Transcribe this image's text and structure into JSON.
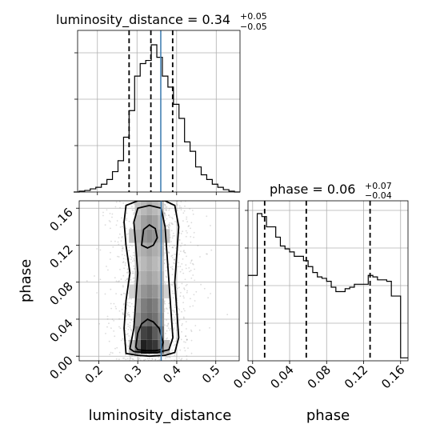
{
  "chart_data": [
    {
      "type": "histogram",
      "panel": "luminosity_distance marginal",
      "title": {
        "param": "luminosity_distance",
        "median": "0.34",
        "plus": "+0.05",
        "minus": "−0.05"
      },
      "x_range": [
        0.15,
        0.56
      ],
      "x_ticks": [
        0.2,
        0.3,
        0.4,
        0.5
      ],
      "bin_edges": [
        0.14,
        0.154,
        0.168,
        0.182,
        0.196,
        0.21,
        0.224,
        0.238,
        0.252,
        0.266,
        0.28,
        0.294,
        0.308,
        0.322,
        0.336,
        0.35,
        0.364,
        0.378,
        0.392,
        0.406,
        0.42,
        0.434,
        0.448,
        0.462,
        0.476,
        0.49,
        0.504,
        0.518,
        0.532,
        0.546,
        0.56
      ],
      "relative_density": [
        0.0,
        0.005,
        0.01,
        0.02,
        0.03,
        0.05,
        0.08,
        0.13,
        0.2,
        0.35,
        0.52,
        0.74,
        0.82,
        0.84,
        0.94,
        0.86,
        0.74,
        0.67,
        0.56,
        0.47,
        0.32,
        0.26,
        0.16,
        0.11,
        0.08,
        0.05,
        0.03,
        0.015,
        0.005,
        0.0
      ],
      "quantiles": [
        0.28,
        0.335,
        0.39
      ],
      "truth": 0.36,
      "y_tick_count": 3
    },
    {
      "type": "histogram",
      "panel": "phase marginal",
      "title": {
        "param": "phase",
        "median": "0.06",
        "plus": "+0.07",
        "minus": "−0.04"
      },
      "x_range": [
        -0.005,
        0.168
      ],
      "x_ticks": [
        0.0,
        0.04,
        0.08,
        0.12,
        0.16
      ],
      "x_tick_labels": [
        "0.00",
        "0.04",
        "0.08",
        "0.12",
        "0.16"
      ],
      "bin_edges": [
        -0.005,
        0.0,
        0.005,
        0.01,
        0.015,
        0.02,
        0.025,
        0.03,
        0.035,
        0.04,
        0.045,
        0.05,
        0.055,
        0.06,
        0.065,
        0.07,
        0.075,
        0.08,
        0.085,
        0.09,
        0.095,
        0.1,
        0.105,
        0.11,
        0.115,
        0.12,
        0.125,
        0.13,
        0.135,
        0.14,
        0.145,
        0.15,
        0.155,
        0.16,
        0.165,
        0.168
      ],
      "relative_density": [
        0.58,
        0.58,
        1.0,
        0.98,
        0.91,
        0.91,
        0.84,
        0.78,
        0.76,
        0.74,
        0.71,
        0.71,
        0.68,
        0.64,
        0.6,
        0.57,
        0.56,
        0.54,
        0.5,
        0.47,
        0.47,
        0.49,
        0.5,
        0.52,
        0.52,
        0.52,
        0.58,
        0.57,
        0.55,
        0.55,
        0.54,
        0.44,
        0.44,
        0.02,
        0.02
      ],
      "quantiles": [
        0.013,
        0.058,
        0.127
      ],
      "y_tick_count": 4
    },
    {
      "type": "heatmap",
      "panel": "2D posterior (joint)",
      "x_label": "luminosity_distance",
      "y_label": "phase",
      "x_range": [
        0.15,
        0.56
      ],
      "y_range": [
        -0.005,
        0.168
      ],
      "x_ticks": [
        0.2,
        0.3,
        0.4,
        0.5
      ],
      "y_ticks": [
        0.0,
        0.04,
        0.08,
        0.12,
        0.16
      ],
      "y_tick_labels": [
        "0.00",
        "0.04",
        "0.08",
        "0.12",
        "0.16"
      ],
      "truth": {
        "luminosity_distance": 0.36
      },
      "contour_levels": [
        "outer",
        "mid",
        "inner"
      ],
      "density_cells": [
        [
          0.315,
          0.01,
          0.95
        ],
        [
          0.33,
          0.01,
          0.9
        ],
        [
          0.345,
          0.01,
          0.85
        ],
        [
          0.3,
          0.01,
          0.6
        ],
        [
          0.36,
          0.01,
          0.65
        ],
        [
          0.315,
          0.025,
          0.8
        ],
        [
          0.33,
          0.025,
          0.85
        ],
        [
          0.345,
          0.025,
          0.7
        ],
        [
          0.3,
          0.025,
          0.55
        ],
        [
          0.36,
          0.025,
          0.6
        ],
        [
          0.315,
          0.04,
          0.6
        ],
        [
          0.33,
          0.04,
          0.65
        ],
        [
          0.345,
          0.04,
          0.6
        ],
        [
          0.3,
          0.04,
          0.45
        ],
        [
          0.36,
          0.04,
          0.45
        ],
        [
          0.315,
          0.055,
          0.55
        ],
        [
          0.33,
          0.055,
          0.6
        ],
        [
          0.345,
          0.055,
          0.55
        ],
        [
          0.3,
          0.055,
          0.4
        ],
        [
          0.36,
          0.055,
          0.4
        ],
        [
          0.315,
          0.07,
          0.45
        ],
        [
          0.33,
          0.07,
          0.5
        ],
        [
          0.345,
          0.07,
          0.45
        ],
        [
          0.3,
          0.07,
          0.35
        ],
        [
          0.36,
          0.07,
          0.35
        ],
        [
          0.315,
          0.085,
          0.35
        ],
        [
          0.33,
          0.085,
          0.4
        ],
        [
          0.345,
          0.085,
          0.35
        ],
        [
          0.3,
          0.085,
          0.3
        ],
        [
          0.36,
          0.085,
          0.3
        ],
        [
          0.315,
          0.1,
          0.3
        ],
        [
          0.33,
          0.1,
          0.35
        ],
        [
          0.345,
          0.1,
          0.3
        ],
        [
          0.3,
          0.1,
          0.25
        ],
        [
          0.36,
          0.1,
          0.25
        ],
        [
          0.315,
          0.115,
          0.35
        ],
        [
          0.33,
          0.115,
          0.4
        ],
        [
          0.345,
          0.115,
          0.35
        ],
        [
          0.3,
          0.115,
          0.3
        ],
        [
          0.36,
          0.115,
          0.3
        ],
        [
          0.315,
          0.13,
          0.45
        ],
        [
          0.33,
          0.13,
          0.5
        ],
        [
          0.345,
          0.13,
          0.45
        ],
        [
          0.3,
          0.13,
          0.35
        ],
        [
          0.36,
          0.13,
          0.35
        ],
        [
          0.315,
          0.145,
          0.4
        ],
        [
          0.33,
          0.145,
          0.45
        ],
        [
          0.345,
          0.145,
          0.4
        ],
        [
          0.3,
          0.145,
          0.3
        ],
        [
          0.36,
          0.145,
          0.3
        ],
        [
          0.315,
          0.16,
          0.3
        ],
        [
          0.33,
          0.16,
          0.35
        ],
        [
          0.345,
          0.16,
          0.3
        ],
        [
          0.3,
          0.16,
          0.25
        ],
        [
          0.36,
          0.16,
          0.25
        ],
        [
          0.285,
          0.07,
          0.2
        ],
        [
          0.375,
          0.07,
          0.2
        ],
        [
          0.285,
          0.13,
          0.25
        ],
        [
          0.375,
          0.13,
          0.25
        ],
        [
          0.285,
          0.01,
          0.3
        ],
        [
          0.375,
          0.01,
          0.3
        ]
      ],
      "contours": [
        {
          "level": "outer",
          "x": [
            0.27,
            0.265,
            0.27,
            0.28,
            0.27,
            0.265,
            0.27,
            0.3,
            0.33,
            0.37,
            0.395,
            0.405,
            0.4,
            0.395,
            0.4,
            0.405,
            0.395,
            0.37,
            0.33,
            0.3,
            0.27
          ],
          "y": [
            0.003,
            0.03,
            0.06,
            0.09,
            0.12,
            0.145,
            0.163,
            0.168,
            0.168,
            0.168,
            0.163,
            0.14,
            0.11,
            0.08,
            0.05,
            0.02,
            0.004,
            0.001,
            0.0,
            0.001,
            0.003
          ]
        },
        {
          "level": "mid",
          "x": [
            0.28,
            0.29,
            0.295,
            0.3,
            0.295,
            0.29,
            0.3,
            0.33,
            0.36,
            0.37,
            0.375,
            0.38,
            0.385,
            0.39,
            0.38,
            0.35,
            0.32,
            0.29,
            0.28
          ],
          "y": [
            0.008,
            0.03,
            0.06,
            0.09,
            0.12,
            0.145,
            0.16,
            0.163,
            0.16,
            0.14,
            0.11,
            0.08,
            0.05,
            0.02,
            0.007,
            0.004,
            0.004,
            0.005,
            0.008
          ]
        },
        {
          "level": "inner",
          "x": [
            0.295,
            0.3,
            0.31,
            0.325,
            0.34,
            0.355,
            0.365,
            0.36,
            0.345,
            0.32,
            0.3,
            0.295
          ],
          "y": [
            0.01,
            0.025,
            0.035,
            0.04,
            0.037,
            0.03,
            0.015,
            0.007,
            0.006,
            0.006,
            0.007,
            0.01
          ]
        },
        {
          "level": "inner",
          "x": [
            0.31,
            0.315,
            0.33,
            0.345,
            0.35,
            0.34,
            0.325,
            0.31
          ],
          "y": [
            0.12,
            0.137,
            0.142,
            0.138,
            0.128,
            0.12,
            0.117,
            0.12
          ]
        }
      ]
    }
  ]
}
